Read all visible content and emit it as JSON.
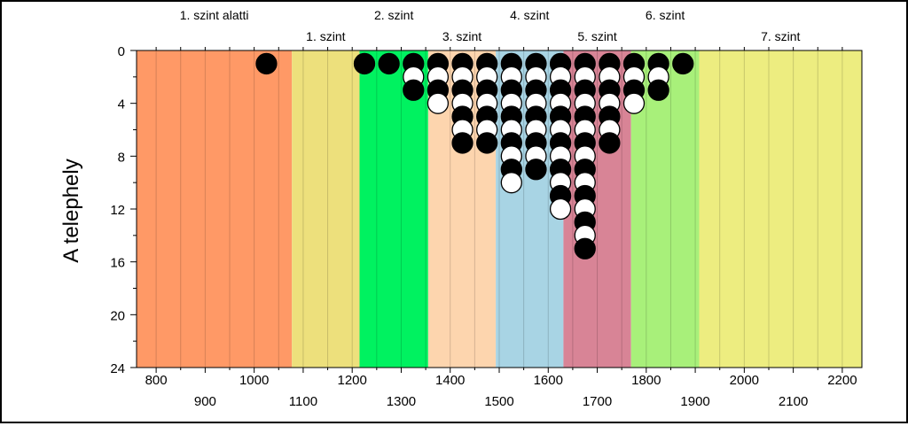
{
  "chart_data": {
    "type": "scatter",
    "title": "",
    "ylabel": "A telephely",
    "xlabel": "",
    "xlim": [
      760,
      2240
    ],
    "ylim": [
      0,
      24
    ],
    "y_inverted": true,
    "yticks": [
      0,
      4,
      8,
      12,
      16,
      20,
      24
    ],
    "xticks_top_row": [
      800,
      1000,
      1200,
      1400,
      1600,
      1800,
      2000,
      2200
    ],
    "xticks_bottom_row": [
      900,
      1100,
      1300,
      1500,
      1700,
      1900,
      2100
    ],
    "minor_grid_step": 50,
    "bands": [
      {
        "label": "1. szint alatti",
        "from": 760,
        "to": 1077,
        "color": "#FF9966",
        "label_row": "top"
      },
      {
        "label": "1. szint",
        "from": 1077,
        "to": 1215,
        "color": "#EDE07C",
        "label_row": "bottom"
      },
      {
        "label": "2. szint",
        "from": 1215,
        "to": 1355,
        "color": "#00F260",
        "label_row": "top"
      },
      {
        "label": "3. szint",
        "from": 1355,
        "to": 1493,
        "color": "#FDD5AE",
        "label_row": "bottom"
      },
      {
        "label": "4. szint",
        "from": 1493,
        "to": 1631,
        "color": "#A8D4E4",
        "label_row": "top"
      },
      {
        "label": "5. szint",
        "from": 1631,
        "to": 1769,
        "color": "#D88496",
        "label_row": "bottom"
      },
      {
        "label": "6. szint",
        "from": 1769,
        "to": 1908,
        "color": "#A8F07A",
        "label_row": "top"
      },
      {
        "label": "7. szint",
        "from": 1908,
        "to": 2240,
        "color": "#EDED80",
        "label_row": "bottom"
      }
    ],
    "columns": [
      {
        "x": 1025,
        "count": 1
      },
      {
        "x": 1225,
        "count": 1
      },
      {
        "x": 1275,
        "count": 1
      },
      {
        "x": 1325,
        "count": 3
      },
      {
        "x": 1375,
        "count": 4
      },
      {
        "x": 1425,
        "count": 7
      },
      {
        "x": 1475,
        "count": 7
      },
      {
        "x": 1525,
        "count": 10
      },
      {
        "x": 1575,
        "count": 9
      },
      {
        "x": 1625,
        "count": 12
      },
      {
        "x": 1675,
        "count": 15
      },
      {
        "x": 1725,
        "count": 7
      },
      {
        "x": 1775,
        "count": 4
      },
      {
        "x": 1825,
        "count": 3
      },
      {
        "x": 1875,
        "count": 1
      }
    ],
    "marker_colors": {
      "odd": "#000000",
      "even": "#FFFFFF"
    }
  }
}
